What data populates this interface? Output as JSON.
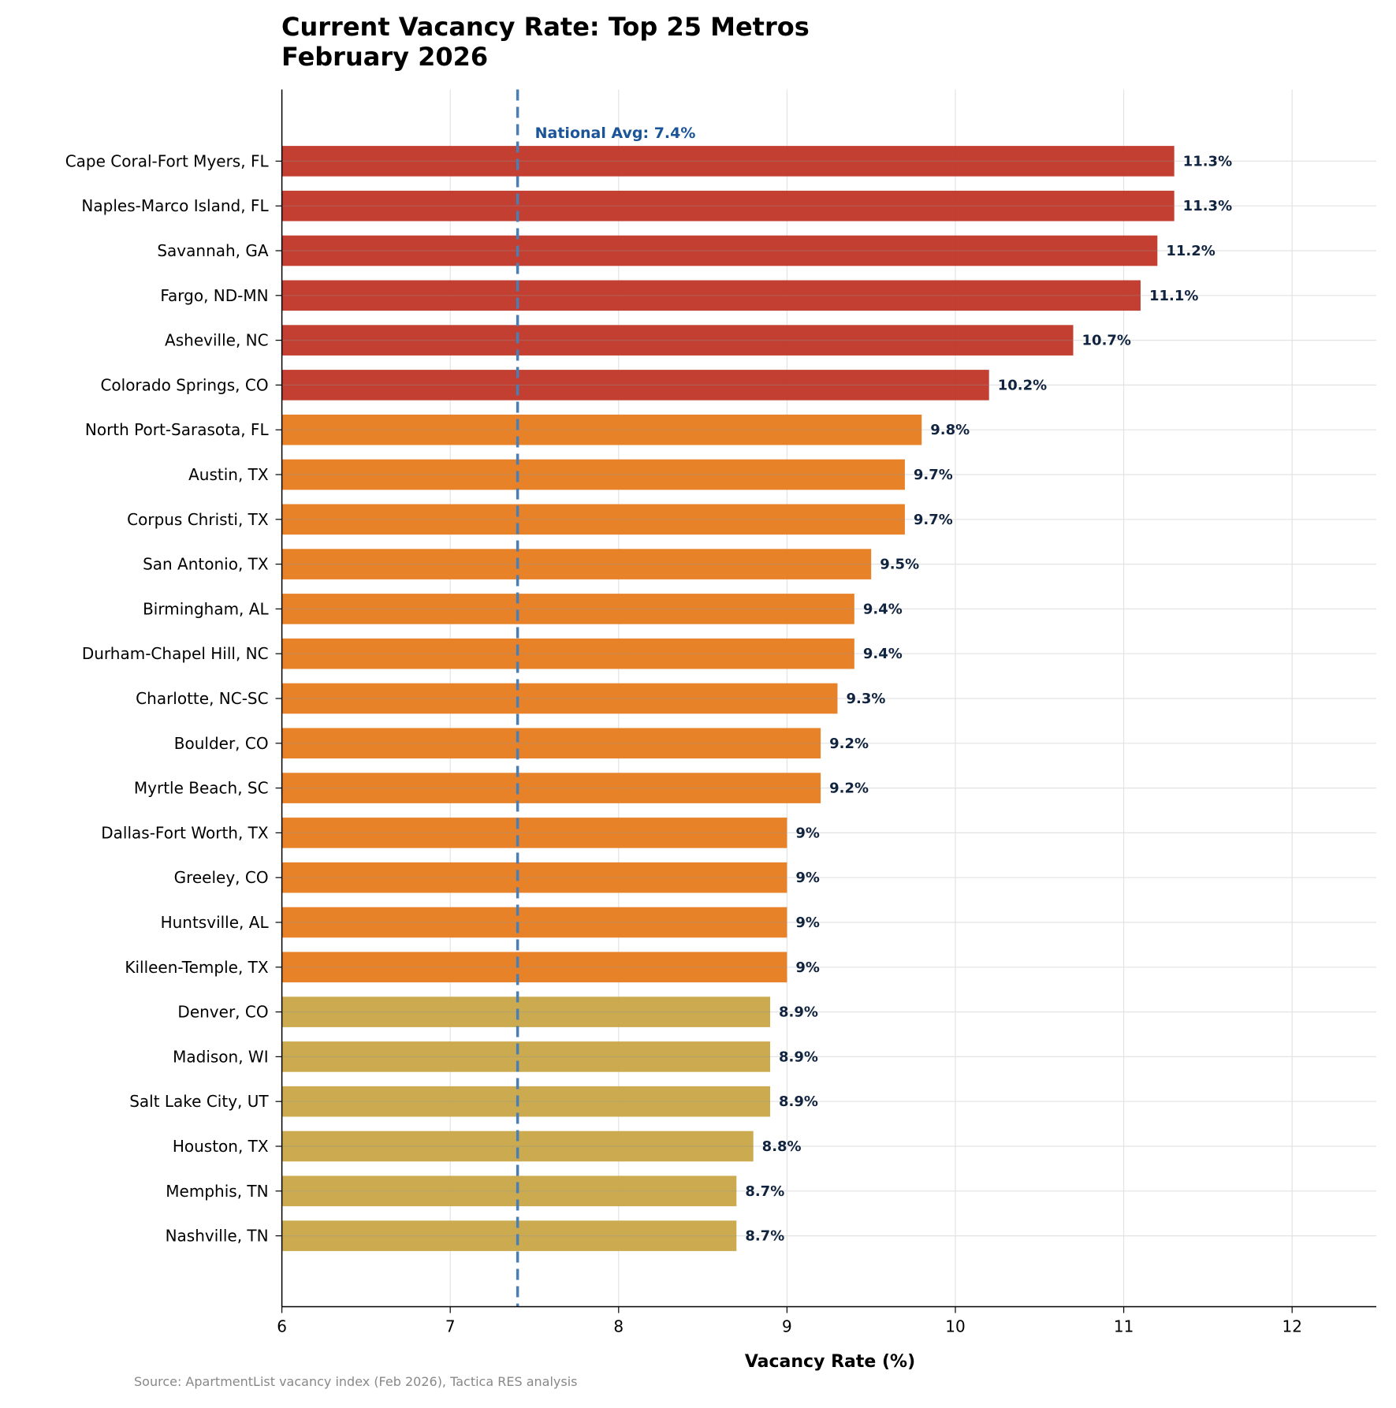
{
  "chart_data": {
    "type": "bar",
    "orientation": "horizontal",
    "title": "Current Vacancy Rate: Top 25 Metros",
    "subtitle": "February 2026",
    "xlabel": "Vacancy Rate (%)",
    "ylabel": "",
    "xlim": [
      6,
      12.5
    ],
    "xticks": [
      6,
      7,
      8,
      9,
      10,
      11,
      12
    ],
    "grid": true,
    "categories": [
      "Cape Coral-Fort Myers, FL",
      "Naples-Marco Island, FL",
      "Savannah, GA",
      "Fargo, ND-MN",
      "Asheville, NC",
      "Colorado Springs, CO",
      "North Port-Sarasota, FL",
      "Austin, TX",
      "Corpus Christi, TX",
      "San Antonio, TX",
      "Birmingham, AL",
      "Durham-Chapel Hill, NC",
      "Charlotte, NC-SC",
      "Boulder, CO",
      "Myrtle Beach, SC",
      "Dallas-Fort Worth, TX",
      "Greeley, CO",
      "Huntsville, AL",
      "Killeen-Temple, TX",
      "Denver, CO",
      "Madison, WI",
      "Salt Lake City, UT",
      "Houston, TX",
      "Memphis, TN",
      "Nashville, TN"
    ],
    "values": [
      11.3,
      11.3,
      11.2,
      11.1,
      10.7,
      10.2,
      9.8,
      9.7,
      9.7,
      9.5,
      9.4,
      9.4,
      9.3,
      9.2,
      9.2,
      9.0,
      9.0,
      9.0,
      9.0,
      8.9,
      8.9,
      8.9,
      8.8,
      8.7,
      8.7
    ],
    "value_labels": [
      "11.3%",
      "11.3%",
      "11.2%",
      "11.1%",
      "10.7%",
      "10.2%",
      "9.8%",
      "9.7%",
      "9.7%",
      "9.5%",
      "9.4%",
      "9.4%",
      "9.3%",
      "9.2%",
      "9.2%",
      "9%",
      "9%",
      "9%",
      "9%",
      "8.9%",
      "8.9%",
      "8.9%",
      "8.8%",
      "8.7%",
      "8.7%"
    ],
    "colors": {
      "high": "#c0392b",
      "mid": "#e67e22",
      "low": "#c9a74a"
    },
    "tiers": [
      "high",
      "high",
      "high",
      "high",
      "high",
      "high",
      "mid",
      "mid",
      "mid",
      "mid",
      "mid",
      "mid",
      "mid",
      "mid",
      "mid",
      "mid",
      "mid",
      "mid",
      "mid",
      "low",
      "low",
      "low",
      "low",
      "low",
      "low"
    ],
    "reference_line": {
      "value": 7.4,
      "label": "National Avg: 7.4%",
      "color": "#4a7fb5"
    },
    "source": "Source: ApartmentList vacancy index (Feb 2026), Tactica RES analysis"
  }
}
